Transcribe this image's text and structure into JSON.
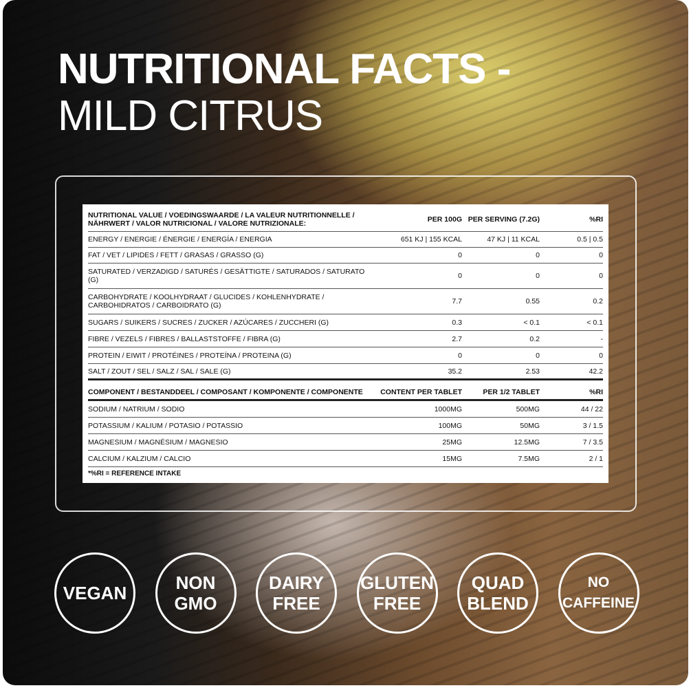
{
  "title_line1": "NUTRITIONAL FACTS -",
  "title_line2": "MILD CITRUS",
  "nutrition": {
    "headers": [
      "NUTRITIONAL VALUE / VOEDINGSWAARDE / LA VALEUR NUTRITIONNELLE / NÄHRWERT / VALOR NUTRICIONAL / VALORE NUTRIZIONALE:",
      "PER 100G",
      "PER SERVING (7.2G)",
      "%RI"
    ],
    "rows": [
      [
        "ENERGY / ENERGIE / ÉNERGIE / ENERGÍA / ENERGIA",
        "651 KJ | 155 KCAL",
        "47 KJ | 11 KCAL",
        "0.5 | 0.5"
      ],
      [
        "FAT / VET / LIPIDES / FETT / GRASAS / GRASSO (G)",
        "0",
        "0",
        "0"
      ],
      [
        "SATURATED / VERZADIGD / SATURÉS / GESÄTTIGTE / SATURADOS / SATURATO (G)",
        "0",
        "0",
        "0"
      ],
      [
        "CARBOHYDRATE / KOOLHYDRAAT / GLUCIDES / KOHLENHYDRATE / CARBOHIDRATOS / CARBOIDRATO (G)",
        "7.7",
        "0.55",
        "0.2"
      ],
      [
        "SUGARS / SUIKERS / SUCRES / ZUCKER / AZÚCARES / ZUCCHERI (G)",
        "0.3",
        "< 0.1",
        "< 0.1"
      ],
      [
        "FIBRE / VEZELS / FIBRES / BALLASTSTOFFE / FIBRA (G)",
        "2.7",
        "0.2",
        "-"
      ],
      [
        "PROTEIN / EIWIT / PROTÉINES / PROTEÍNA / PROTEINA (G)",
        "0",
        "0",
        "0"
      ],
      [
        "SALT / ZOUT / SEL / SALZ / SAL / SALE (G)",
        "35.2",
        "2.53",
        "42.2"
      ]
    ]
  },
  "components": {
    "headers": [
      "COMPONENT / BESTANDDEEL / COMPOSANT / KOMPONENTE / COMPONENTE",
      "CONTENT PER TABLET",
      "PER 1/2 TABLET",
      "%RI"
    ],
    "rows": [
      [
        "SODIUM / NATRIUM / SODIO",
        "1000MG",
        "500MG",
        "44 / 22"
      ],
      [
        "POTASSIUM / KALIUM / POTASIO / POTASSIO",
        "100MG",
        "50MG",
        "3 / 1.5"
      ],
      [
        "MAGNESIUM / MAGNÉSIUM / MAGNESIO",
        "25MG",
        "12.5MG",
        "7 / 3.5"
      ],
      [
        "CALCIUM / KALZIUM / CALCIO",
        "15MG",
        "7.5MG",
        "2 / 1"
      ]
    ]
  },
  "footnote": "*%RI = REFERENCE INTAKE",
  "badges": [
    "VEGAN",
    "NON\nGMO",
    "DAIRY\nFREE",
    "GLUTEN\nFREE",
    "QUAD\nBLEND",
    "NO\nCAFFEINE"
  ]
}
